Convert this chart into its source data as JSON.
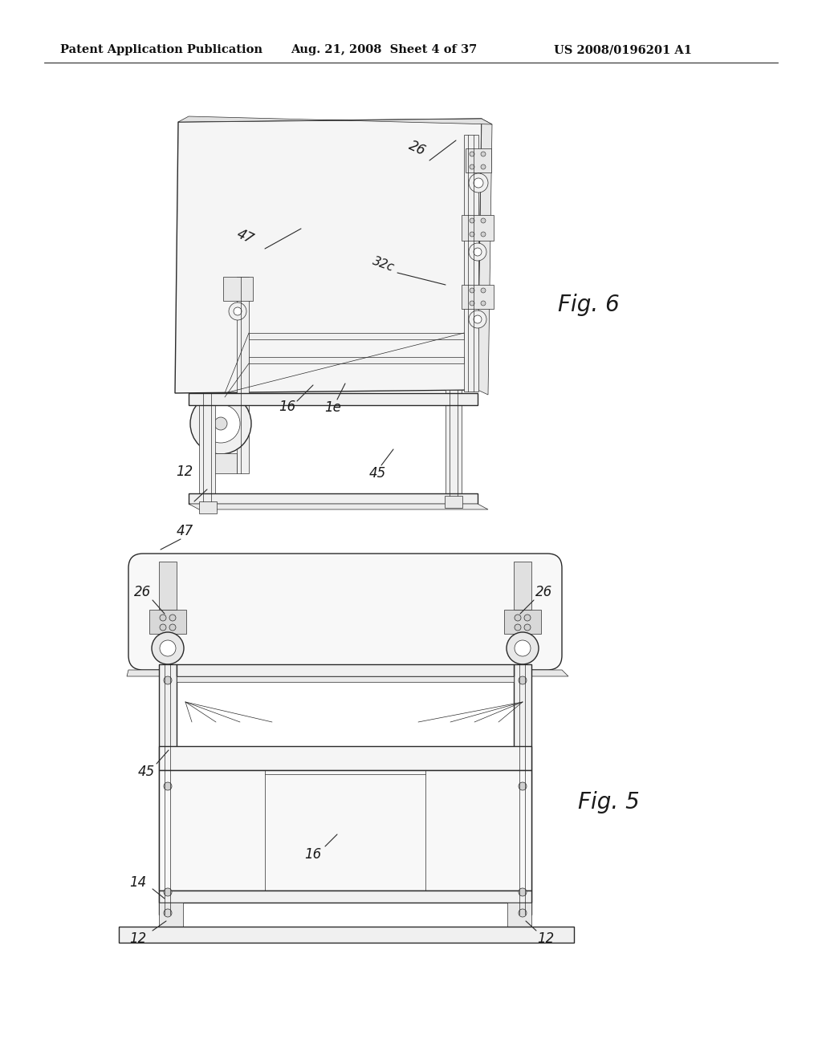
{
  "background_color": "#ffffff",
  "header_left": "Patent Application Publication",
  "header_center": "Aug. 21, 2008  Sheet 4 of 37",
  "header_right": "US 2008/0196201 A1",
  "line_color": "#2a2a2a",
  "label_color": "#1a1a1a",
  "fig6_title": "Fig. 6",
  "fig5_title": "Fig. 5",
  "lw_main": 1.0,
  "lw_thin": 0.5,
  "lw_thick": 1.4
}
